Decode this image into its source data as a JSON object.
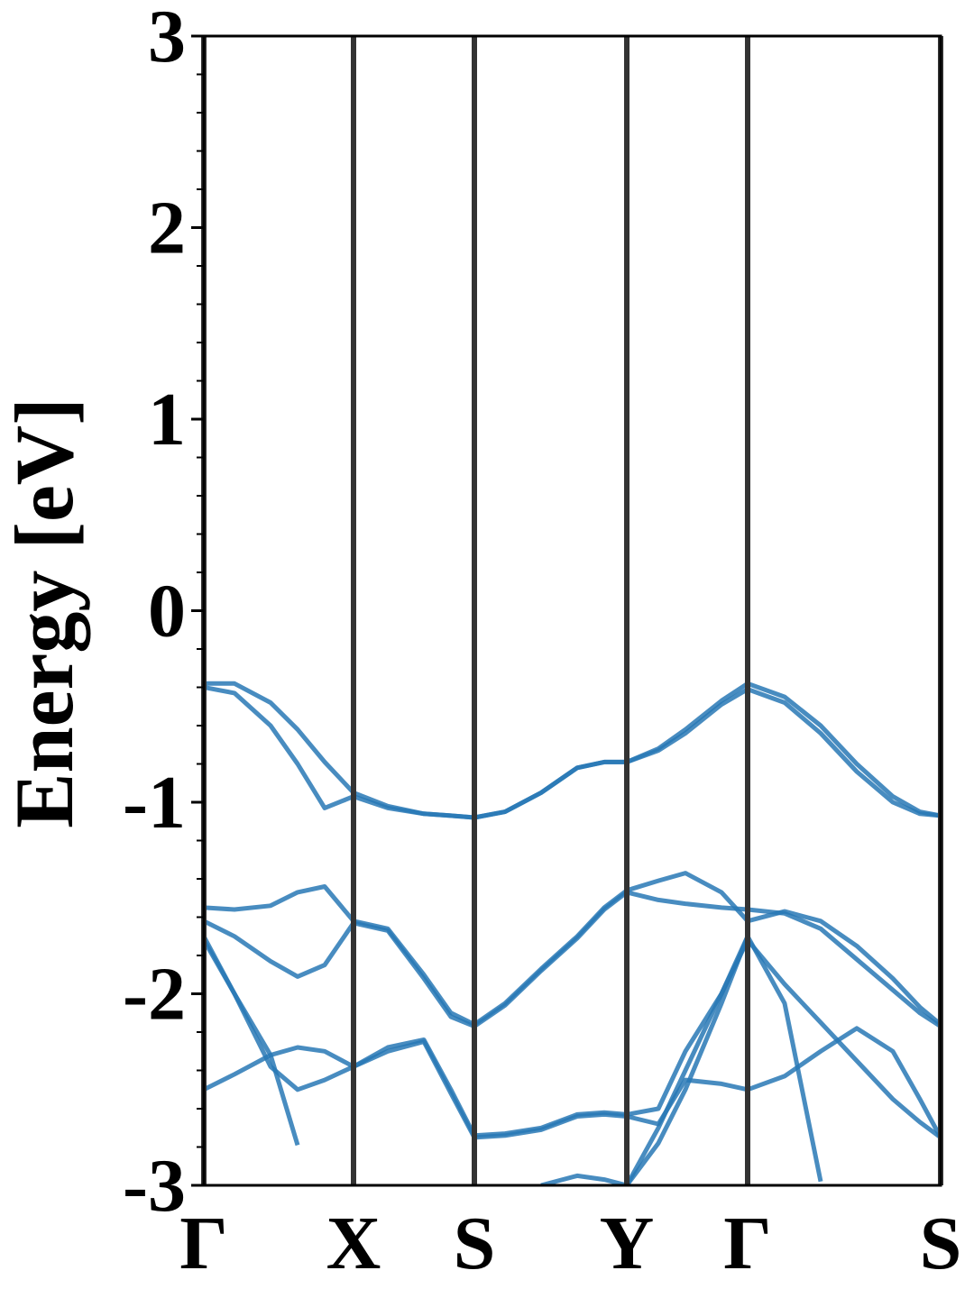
{
  "chart_data": {
    "type": "line",
    "ylabel": "Energy [eV]",
    "color": "#2878b5",
    "grid": false,
    "xlim": [
      0,
      8.17
    ],
    "ylim": [
      -3,
      3
    ],
    "xticks": [
      {
        "value": 0,
        "label": "Γ"
      },
      {
        "value": 1.66,
        "label": "X"
      },
      {
        "value": 3.0,
        "label": "S"
      },
      {
        "value": 4.69,
        "label": "Y"
      },
      {
        "value": 6.03,
        "label": "Γ"
      },
      {
        "value": 8.17,
        "label": "S"
      }
    ],
    "yticks": [
      -3,
      -2,
      -1,
      0,
      1,
      2,
      3
    ],
    "yminorticks": [
      -2.8,
      -2.6,
      -2.4,
      -2.2,
      -1.8,
      -1.6,
      -1.4,
      -1.2,
      -0.8,
      -0.6,
      -0.4,
      -0.2,
      0.2,
      0.4,
      0.6,
      0.8,
      1.2,
      1.4,
      1.6,
      1.8,
      2.2,
      2.4,
      2.6,
      2.8
    ],
    "x": [
      0,
      0.34,
      0.74,
      1.04,
      1.34,
      1.66,
      2.04,
      2.44,
      2.74,
      3.0,
      3.34,
      3.74,
      4.14,
      4.44,
      4.69,
      5.04,
      5.34,
      5.74,
      6.03,
      6.44,
      6.84,
      7.24,
      7.64,
      7.94,
      8.17
    ],
    "series": [
      {
        "values": [
          -0.38,
          -0.38,
          -0.48,
          -0.62,
          -0.79,
          -0.95,
          -1.02,
          -1.06,
          -1.07,
          -1.08,
          -1.05,
          -0.95,
          -0.82,
          -0.79,
          -0.79,
          -0.72,
          -0.62,
          -0.47,
          -0.38,
          -0.45,
          -0.6,
          -0.8,
          -0.97,
          -1.05,
          -1.07
        ]
      },
      {
        "values": [
          -0.4,
          -0.43,
          -0.6,
          -0.8,
          -1.03,
          -0.97,
          -1.03,
          -1.06,
          -1.07,
          -1.08,
          -1.05,
          -0.95,
          -0.82,
          -0.79,
          -0.79,
          -0.73,
          -0.64,
          -0.49,
          -0.41,
          -0.48,
          -0.64,
          -0.84,
          -1.0,
          -1.06,
          -1.07
        ]
      },
      {
        "values": [
          -1.55,
          -1.56,
          -1.54,
          -1.47,
          -1.44,
          -1.62,
          -1.66,
          -1.9,
          -2.1,
          -2.16,
          -2.05,
          -1.87,
          -1.7,
          -1.55,
          -1.46,
          -1.41,
          -1.37,
          -1.47,
          -1.62,
          -1.57,
          -1.62,
          -1.75,
          -1.92,
          -2.07,
          -2.16
        ]
      },
      {
        "values": [
          -1.62,
          -1.7,
          -1.83,
          -1.91,
          -1.85,
          -1.63,
          -1.67,
          -1.92,
          -2.12,
          -2.17,
          -2.06,
          -1.88,
          -1.71,
          -1.56,
          -1.47,
          -1.51,
          -1.53,
          -1.55,
          -1.56,
          -1.58,
          -1.66,
          -1.82,
          -1.98,
          -2.1,
          -2.17
        ]
      },
      {
        "values": [
          -1.7,
          -2.0,
          -2.32,
          -2.79,
          null,
          null,
          null,
          null,
          null,
          null,
          null,
          null,
          null,
          null,
          -3.0,
          -2.7,
          -2.4,
          -2.0,
          -1.7,
          -2.05,
          -2.98,
          null,
          null,
          null,
          null
        ]
      },
      {
        "values": [
          -1.72,
          -2.0,
          -2.38,
          -2.5,
          -2.45,
          -2.38,
          -2.28,
          -2.24,
          -2.5,
          -2.74,
          -2.73,
          -2.7,
          -2.63,
          -2.62,
          -2.63,
          -2.6,
          -2.3,
          -2.0,
          -1.72,
          -1.95,
          -2.15,
          -2.35,
          -2.55,
          -2.67,
          -2.75
        ]
      },
      {
        "values": [
          -2.5,
          -2.42,
          -2.32,
          -2.28,
          -2.3,
          -2.38,
          -2.3,
          -2.25,
          -2.52,
          -2.75,
          -2.74,
          -2.71,
          -2.64,
          -2.63,
          -2.64,
          -2.68,
          -2.45,
          -2.47,
          -2.5,
          -2.43,
          -2.3,
          -2.18,
          -2.3,
          -2.55,
          -2.75
        ]
      },
      {
        "values": [
          null,
          null,
          null,
          null,
          null,
          null,
          null,
          null,
          null,
          null,
          null,
          -3.0,
          -2.95,
          -2.97,
          -3.0,
          null,
          null,
          null,
          null,
          null,
          null,
          null,
          null,
          null,
          null
        ]
      },
      {
        "values": [
          null,
          null,
          null,
          null,
          null,
          null,
          null,
          null,
          null,
          null,
          null,
          null,
          null,
          null,
          -3.0,
          -2.78,
          -2.5,
          -2.05,
          -1.7,
          null,
          null,
          null,
          null,
          null,
          null
        ]
      }
    ]
  }
}
